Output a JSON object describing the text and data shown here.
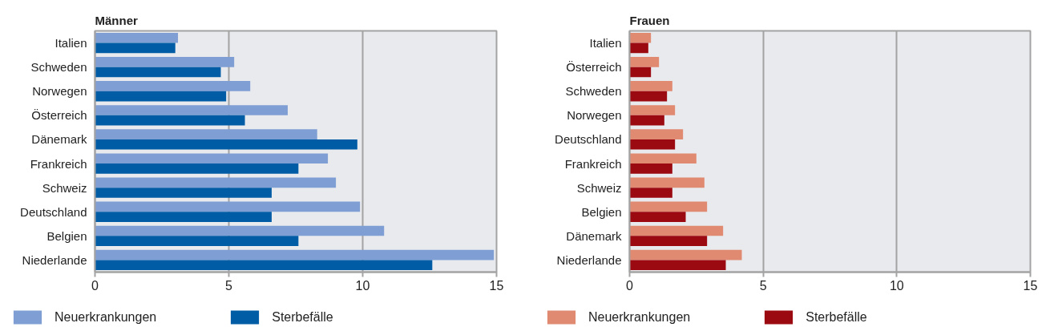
{
  "chart_data": [
    {
      "type": "bar",
      "orientation": "horizontal",
      "title": "Männer",
      "categories": [
        "Italien",
        "Schweden",
        "Norwegen",
        "Österreich",
        "Dänemark",
        "Frankreich",
        "Schweiz",
        "Deutschland",
        "Belgien",
        "Niederlande"
      ],
      "series": [
        {
          "name": "Neuerkrankungen",
          "color": "#7f9fd4",
          "values": [
            3.1,
            5.2,
            5.8,
            7.2,
            8.3,
            8.7,
            9.0,
            9.9,
            10.8,
            14.9
          ]
        },
        {
          "name": "Sterbefälle",
          "color": "#005ca5",
          "values": [
            3.0,
            4.7,
            4.9,
            5.6,
            9.8,
            7.6,
            6.6,
            6.6,
            7.6,
            12.6
          ]
        }
      ],
      "xlim": [
        0,
        15
      ],
      "xticks": [
        0,
        5,
        10,
        15
      ],
      "grid": "x",
      "legend": "bottom"
    },
    {
      "type": "bar",
      "orientation": "horizontal",
      "title": "Frauen",
      "categories": [
        "Italien",
        "Österreich",
        "Schweden",
        "Norwegen",
        "Deutschland",
        "Frankreich",
        "Schweiz",
        "Belgien",
        "Dänemark",
        "Niederlande"
      ],
      "series": [
        {
          "name": "Neuerkrankungen",
          "color": "#e08a72",
          "values": [
            0.8,
            1.1,
            1.6,
            1.7,
            2.0,
            2.5,
            2.8,
            2.9,
            3.5,
            4.2
          ]
        },
        {
          "name": "Sterbefälle",
          "color": "#9b0a10",
          "values": [
            0.7,
            0.8,
            1.4,
            1.3,
            1.7,
            1.6,
            1.6,
            2.1,
            2.9,
            3.6
          ]
        }
      ],
      "xlim": [
        0,
        15
      ],
      "xticks": [
        0,
        5,
        10,
        15
      ],
      "grid": "x",
      "legend": "bottom"
    }
  ]
}
